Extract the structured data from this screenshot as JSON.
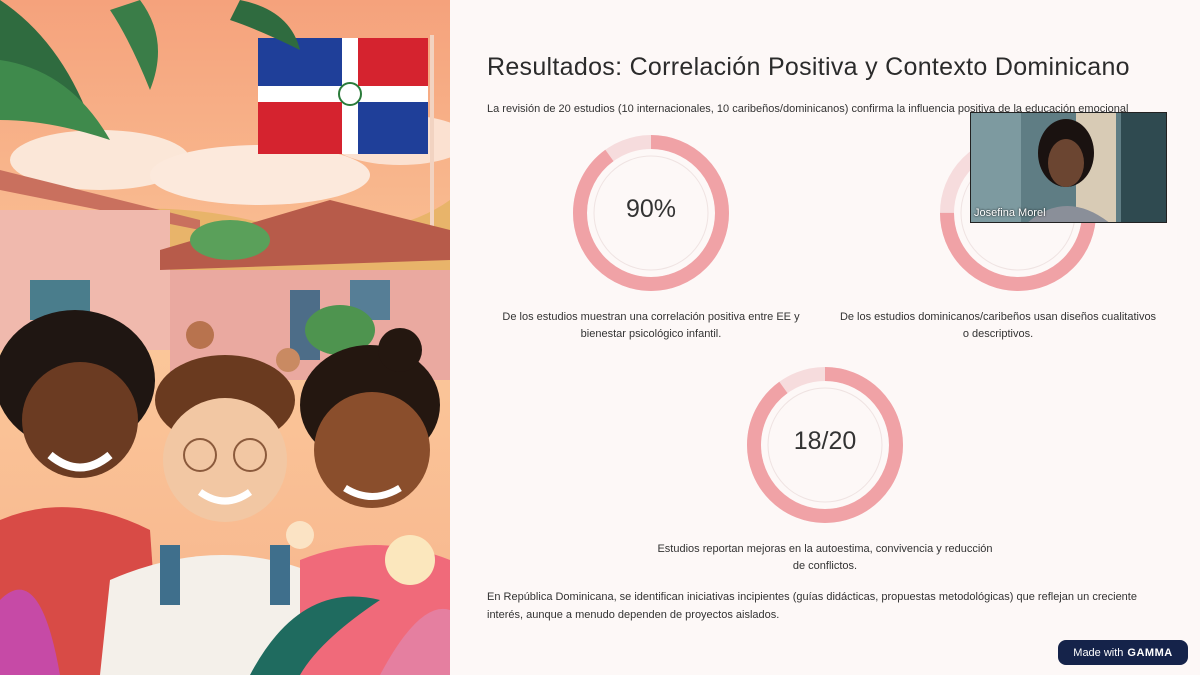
{
  "slide": {
    "title": "Resultados: Correlación Positiva y Contexto Dominicano",
    "intro": "La revisión de 20 estudios (10 internacionales, 10 caribeños/dominicanos) confirma la influencia positiva de la educación emocional",
    "stats": [
      {
        "value": "90%",
        "fraction": 0.9,
        "desc": "De los estudios muestran una correlación positiva entre EE y bienestar psicológico infantil."
      },
      {
        "value": "",
        "fraction": 0.75,
        "desc": "De los estudios dominicanos/caribeños usan diseños cualitativos o descriptivos."
      },
      {
        "value": "18/20",
        "fraction": 0.9,
        "desc": "Estudios reportan mejoras en la autoestima, convivencia y reducción de conflictos."
      }
    ],
    "closing": "En República Dominicana, se identifican iniciativas incipientes (guías didácticas, propuestas metodológicas) que reflejan un creciente interés, aunque a menudo dependen de proyectos aislados."
  },
  "video": {
    "participant": "Josefina Morel"
  },
  "badge": {
    "prefix": "Made with",
    "brand": "GAMMA"
  },
  "colors": {
    "ring": "#f0a2a6",
    "ring_track": "#f6dcdd",
    "badge": "#15234a"
  }
}
